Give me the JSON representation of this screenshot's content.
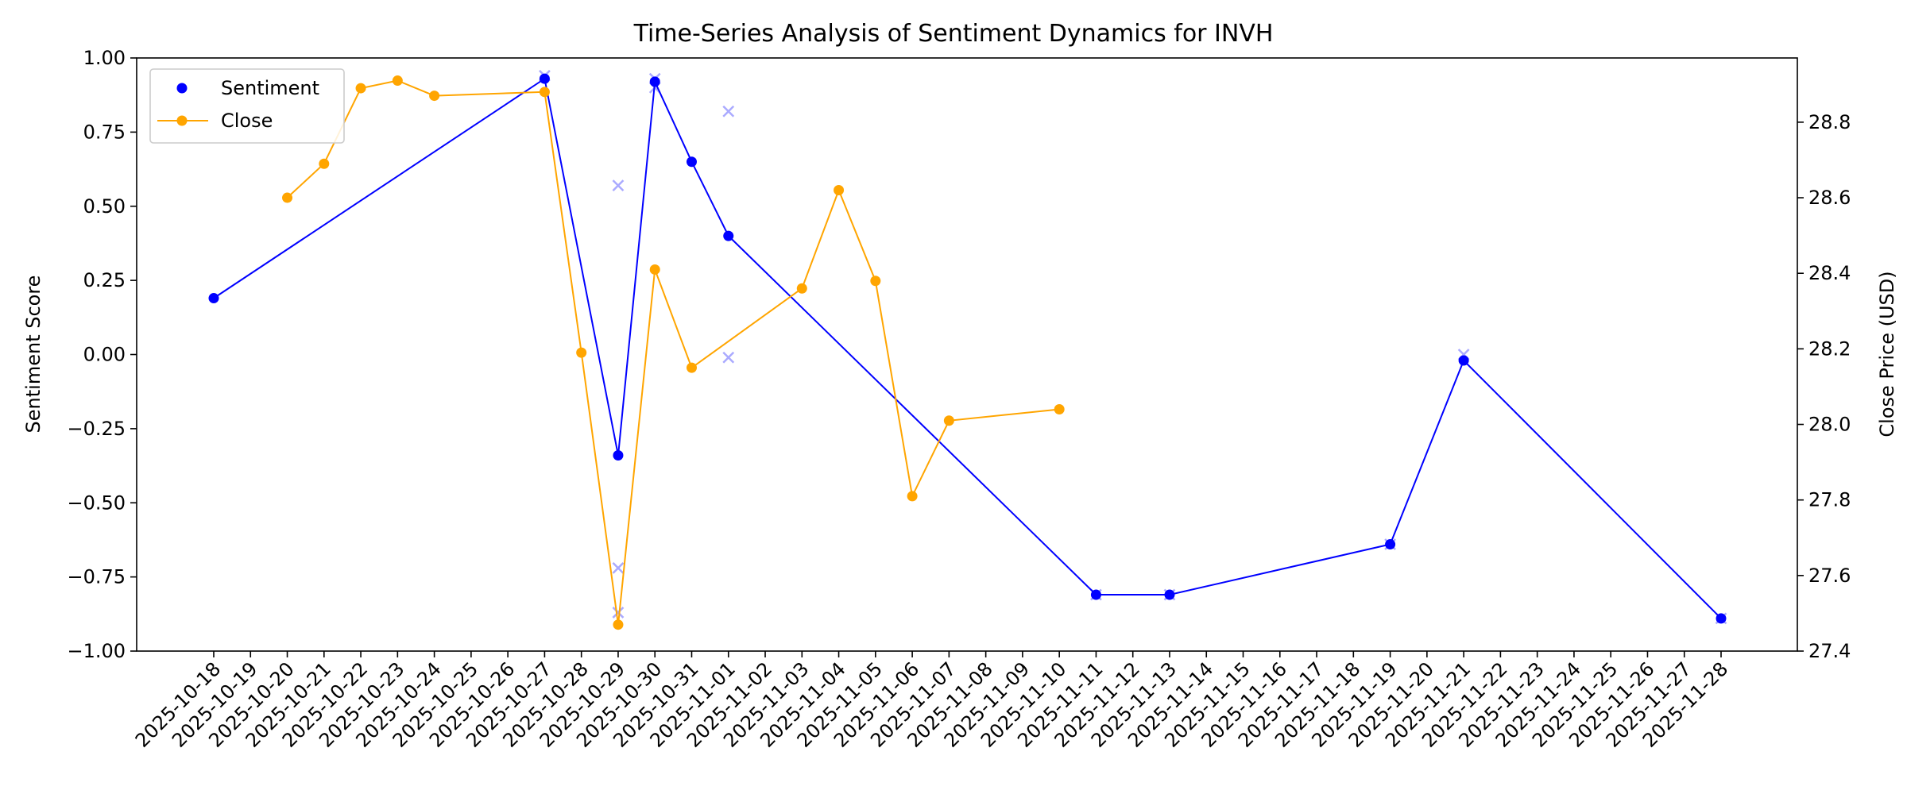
{
  "chart_data": {
    "type": "line",
    "title": "Time-Series Analysis of Sentiment Dynamics for INVH",
    "ylabel_left": "Sentiment Score",
    "ylabel_right": "Close Price (USD)",
    "x_ticks": [
      "2025-10-18",
      "2025-10-19",
      "2025-10-20",
      "2025-10-21",
      "2025-10-22",
      "2025-10-23",
      "2025-10-24",
      "2025-10-25",
      "2025-10-26",
      "2025-10-27",
      "2025-10-28",
      "2025-10-29",
      "2025-10-30",
      "2025-10-31",
      "2025-11-01",
      "2025-11-02",
      "2025-11-03",
      "2025-11-04",
      "2025-11-05",
      "2025-11-06",
      "2025-11-07",
      "2025-11-08",
      "2025-11-09",
      "2025-11-10",
      "2025-11-11",
      "2025-11-12",
      "2025-11-13",
      "2025-11-14",
      "2025-11-15",
      "2025-11-16",
      "2025-11-17",
      "2025-11-18",
      "2025-11-19",
      "2025-11-20",
      "2025-11-21",
      "2025-11-22",
      "2025-11-23",
      "2025-11-24",
      "2025-11-25",
      "2025-11-26",
      "2025-11-27",
      "2025-11-28"
    ],
    "ylim_left": [
      -1.0,
      1.0
    ],
    "yticks_left": [
      "1.00",
      "0.75",
      "0.50",
      "0.25",
      "0.00",
      "−0.25",
      "−0.50",
      "−0.75",
      "−1.00"
    ],
    "ylim_right": [
      27.4,
      28.97
    ],
    "yticks_right": [
      "28.8",
      "28.6",
      "28.4",
      "28.2",
      "28.0",
      "27.8",
      "27.6",
      "27.4"
    ],
    "legend_position": "upper-left",
    "grid": false,
    "series": [
      {
        "name": "Sentiment",
        "axis": "left",
        "color": "#0000ff",
        "x": [
          "2025-10-18",
          "2025-10-27",
          "2025-10-29",
          "2025-10-30",
          "2025-10-31",
          "2025-11-01",
          "2025-11-11",
          "2025-11-13",
          "2025-11-19",
          "2025-11-21",
          "2025-11-28"
        ],
        "values": [
          0.19,
          0.93,
          -0.34,
          0.92,
          0.65,
          0.4,
          -0.81,
          -0.81,
          -0.64,
          -0.02,
          -0.89
        ]
      },
      {
        "name": "Close",
        "axis": "right",
        "color": "#ffa500",
        "x": [
          "2025-10-20",
          "2025-10-21",
          "2025-10-22",
          "2025-10-23",
          "2025-10-24",
          "2025-10-27",
          "2025-10-28",
          "2025-10-29",
          "2025-10-30",
          "2025-10-31",
          "2025-11-03",
          "2025-11-04",
          "2025-11-05",
          "2025-11-06",
          "2025-11-07",
          "2025-11-10"
        ],
        "values": [
          28.6,
          28.69,
          28.89,
          28.91,
          28.87,
          28.88,
          28.19,
          27.47,
          28.41,
          28.15,
          28.36,
          28.62,
          28.38,
          27.81,
          28.01,
          28.04
        ]
      }
    ],
    "raw_points": {
      "color": "#aaaaff",
      "axis": "left",
      "x": [
        "2025-10-27",
        "2025-10-29",
        "2025-10-29",
        "2025-10-29",
        "2025-10-30",
        "2025-10-30",
        "2025-11-01",
        "2025-11-01",
        "2025-11-11",
        "2025-11-13",
        "2025-11-19",
        "2025-11-21",
        "2025-11-28"
      ],
      "values": [
        0.94,
        0.57,
        -0.72,
        -0.87,
        0.93,
        0.9,
        0.82,
        -0.01,
        -0.81,
        -0.81,
        -0.64,
        0.0,
        -0.89
      ]
    }
  }
}
